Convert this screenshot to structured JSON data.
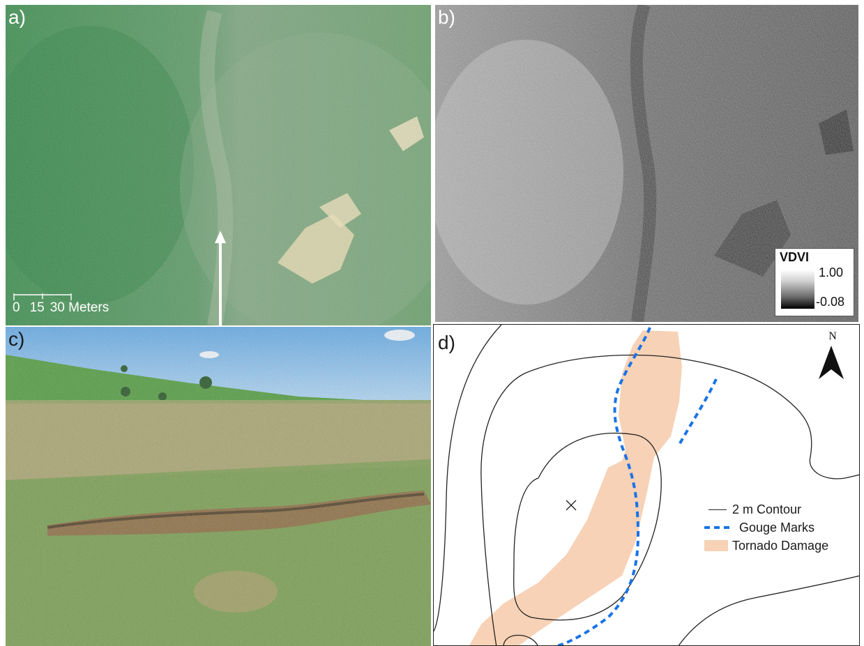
{
  "panels": {
    "a": {
      "label": "a)",
      "scale": {
        "ticks": [
          "0",
          "15",
          "30 Meters"
        ]
      }
    },
    "b": {
      "label": "b)",
      "legend": {
        "title": "VDVI",
        "max": "1.00",
        "min": "-0.08"
      }
    },
    "c": {
      "label": "c)"
    },
    "d": {
      "label": "d)",
      "north": "N",
      "legend": {
        "contour": "2 m Contour",
        "gouge": "Gouge Marks",
        "damage": "Tornado Damage"
      }
    }
  },
  "colors": {
    "gouge": "#1a73e8",
    "damage": "#f7d2b6",
    "contour": "#222222",
    "grass": "#3f8a4a"
  }
}
